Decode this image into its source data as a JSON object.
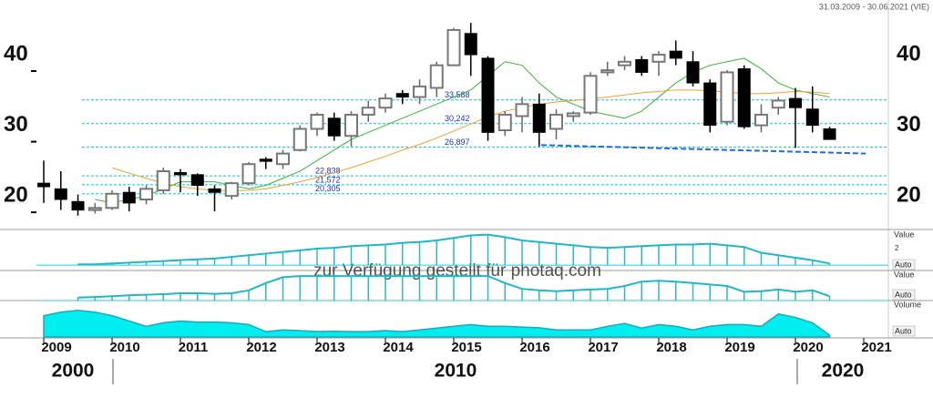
{
  "chart_data": {
    "type": "candlestick",
    "date_range": "31.03.2009 - 30.06.2021 (VIE)",
    "watermark": "zur Verfügung gestellt für photaq.com",
    "xlim": [
      2008.893,
      2021.36
    ],
    "xticks": [
      2009,
      2010,
      2011,
      2012,
      2013,
      2014,
      2015,
      2016,
      2017,
      2018,
      2019,
      2020,
      2021
    ],
    "ylim": [
      15.5,
      47.1
    ],
    "yticks": [
      20,
      30,
      40
    ],
    "decades": [
      {
        "value": 2000,
        "label": "2000"
      },
      {
        "value": 2010,
        "label": "2010"
      },
      {
        "value": 2020,
        "label": "2020"
      }
    ],
    "candles": {
      "x": [
        2009,
        2009.25,
        2009.5,
        2009.75,
        2010,
        2010.25,
        2010.5,
        2010.75,
        2011,
        2011.25,
        2011.5,
        2011.75,
        2012,
        2012.25,
        2012.5,
        2012.75,
        2013,
        2013.25,
        2013.5,
        2013.75,
        2014,
        2014.25,
        2014.5,
        2014.75,
        2015,
        2015.25,
        2015.5,
        2015.75,
        2016,
        2016.25,
        2016.5,
        2016.75,
        2017,
        2017.25,
        2017.5,
        2017.75,
        2018,
        2018.25,
        2018.5,
        2018.75,
        2019,
        2019.25,
        2019.5,
        2019.75,
        2020,
        2020.25,
        2020.5
      ],
      "open": [
        21.8,
        21,
        19.2,
        18,
        18.3,
        20.5,
        19.5,
        20.8,
        23.3,
        23,
        21,
        20,
        21.8,
        25.2,
        24.5,
        26.5,
        29.5,
        31,
        28.5,
        31.5,
        32.5,
        34.5,
        34,
        35.3,
        38.5,
        43,
        39.5,
        29.3,
        31.3,
        33,
        29.5,
        31.3,
        31.8,
        37.5,
        38.5,
        39.3,
        39,
        40.5,
        39,
        36,
        30.5,
        38,
        30,
        32.5,
        33.8,
        32.3,
        29.5
      ],
      "high": [
        25,
        23.5,
        20.2,
        19,
        20.8,
        21.3,
        21.5,
        24,
        23.8,
        23.2,
        21.5,
        22,
        24.8,
        25.5,
        26.5,
        30,
        31.8,
        31.8,
        32,
        33.5,
        34.5,
        35,
        36.5,
        39,
        43.8,
        44.5,
        39.8,
        32,
        34,
        34.5,
        32.3,
        32,
        37.5,
        39,
        39.8,
        39.8,
        40.5,
        42,
        40.5,
        36.5,
        37.8,
        38.5,
        33,
        34,
        35.3,
        35.5,
        29.8
      ],
      "low": [
        19,
        18,
        17.2,
        17.5,
        18,
        17.8,
        18.8,
        20.3,
        20.5,
        20,
        17.8,
        19.5,
        21.5,
        23.8,
        23.8,
        26.3,
        28.5,
        27.8,
        27,
        30.5,
        31.8,
        33,
        33,
        34,
        38.5,
        37,
        27.8,
        28.5,
        29,
        27,
        28,
        30.5,
        31.5,
        37,
        37.8,
        37,
        37,
        38.5,
        35.5,
        29,
        30,
        29.5,
        29,
        31.5,
        26.8,
        29,
        28
      ],
      "close": [
        21.3,
        19.5,
        18,
        18.3,
        20.3,
        19,
        21,
        23.5,
        23,
        21.5,
        20.5,
        21.8,
        24.5,
        24.9,
        26,
        29.5,
        31.5,
        28.5,
        31.5,
        32.5,
        33.8,
        34,
        35.5,
        38.5,
        43.5,
        40,
        29,
        31.5,
        33,
        29,
        31.5,
        31.7,
        37,
        37.8,
        39,
        37.5,
        40,
        39.5,
        36,
        30,
        37.5,
        29.8,
        31.5,
        33.5,
        32.5,
        30,
        28
      ]
    },
    "series": [
      {
        "color": "#3cb43c",
        "values": [
          null,
          null,
          null,
          19.5,
          19,
          19.5,
          20,
          21,
          22,
          22,
          22,
          21.5,
          21,
          21.5,
          22.5,
          23.5,
          25,
          26.5,
          28,
          29,
          30,
          31,
          32,
          33,
          34,
          35,
          37,
          39,
          38.5,
          36,
          34,
          33,
          32,
          31.5,
          31,
          32,
          34,
          36,
          37.5,
          38.5,
          39,
          39.5,
          38,
          36,
          35,
          34.5,
          34
        ]
      },
      {
        "color": "#f0a030",
        "values": [
          null,
          null,
          null,
          null,
          24,
          23.2,
          22.5,
          21.8,
          21.3,
          21,
          20.8,
          20.7,
          20.8,
          21,
          21.5,
          22,
          22.6,
          23.3,
          24,
          24.8,
          25.6,
          26.5,
          27.3,
          28.2,
          29.2,
          30.2,
          31.2,
          32,
          32.5,
          33,
          33.3,
          33.5,
          33.8,
          34,
          34.3,
          34.6,
          34.8,
          35,
          35,
          34.9,
          34.7,
          34.5,
          34.5,
          34.6,
          34.8,
          34.7,
          34.5
        ]
      }
    ],
    "levels": [
      {
        "value": 33.588,
        "label": "33,588"
      },
      {
        "value": 30.242,
        "label": "30,242"
      },
      {
        "value": 26.897,
        "label": "26,897"
      },
      {
        "value": 22.838,
        "label": "22,838"
      },
      {
        "value": 21.572,
        "label": "21,572"
      },
      {
        "value": 20.305,
        "label": "20,305"
      }
    ],
    "trendline": {
      "x": [
        2016.28,
        2021.03
      ],
      "y": [
        27.2,
        26.0
      ],
      "color": "#1e6ee0"
    },
    "panels": [
      {
        "label": "Value",
        "auto": "Auto",
        "kind": "line",
        "ylim": [
          -0.65,
          4.1
        ],
        "yticks": [
          2
        ],
        "values": [
          null,
          null,
          0.1,
          0.1,
          0.2,
          0.3,
          0.4,
          0.5,
          0.6,
          0.7,
          0.8,
          1.0,
          1.2,
          1.4,
          1.6,
          1.8,
          2.0,
          2.1,
          2.3,
          2.4,
          2.5,
          2.7,
          2.8,
          3.0,
          3.3,
          3.6,
          3.7,
          3.4,
          3.0,
          2.8,
          2.6,
          2.4,
          2.2,
          2.1,
          2.2,
          2.3,
          2.4,
          2.5,
          2.5,
          2.6,
          2.4,
          2.2,
          1.5,
          1.2,
          0.9,
          0.6,
          0.2
        ]
      },
      {
        "label": "Value",
        "auto": "Auto",
        "kind": "line",
        "ylim": [
          0,
          10
        ],
        "yticks": [],
        "values": [
          null,
          null,
          1,
          1.2,
          1.5,
          1.8,
          2,
          2.2,
          2.5,
          2.5,
          2.3,
          2.5,
          3.5,
          6,
          8,
          8.4,
          8.4,
          8.4,
          8.4,
          8.4,
          8.4,
          8.4,
          8.4,
          8.4,
          8.4,
          8.4,
          8.4,
          6,
          4,
          3.5,
          3.2,
          3.5,
          3.8,
          4,
          5,
          6.5,
          6.8,
          6.5,
          6,
          5.5,
          5,
          3,
          3.2,
          3.8,
          3,
          3.5,
          1.5
        ]
      },
      {
        "label": "Volume",
        "auto": "Auto",
        "kind": "area",
        "ylim": [
          0,
          10
        ],
        "yticks": [],
        "values": [
          6,
          7,
          7.5,
          7,
          6,
          4.5,
          3,
          4,
          4.5,
          4.2,
          4.2,
          4,
          3.5,
          1.5,
          2,
          1.8,
          1.5,
          1.6,
          1.5,
          1.5,
          1.8,
          1.5,
          2,
          2.5,
          3,
          3.5,
          3,
          3,
          2.8,
          2.6,
          2,
          2,
          2,
          3,
          3.8,
          2.5,
          3.5,
          3,
          2,
          3,
          3.5,
          3.5,
          3,
          6.5,
          5.5,
          4,
          0.5
        ]
      }
    ]
  }
}
